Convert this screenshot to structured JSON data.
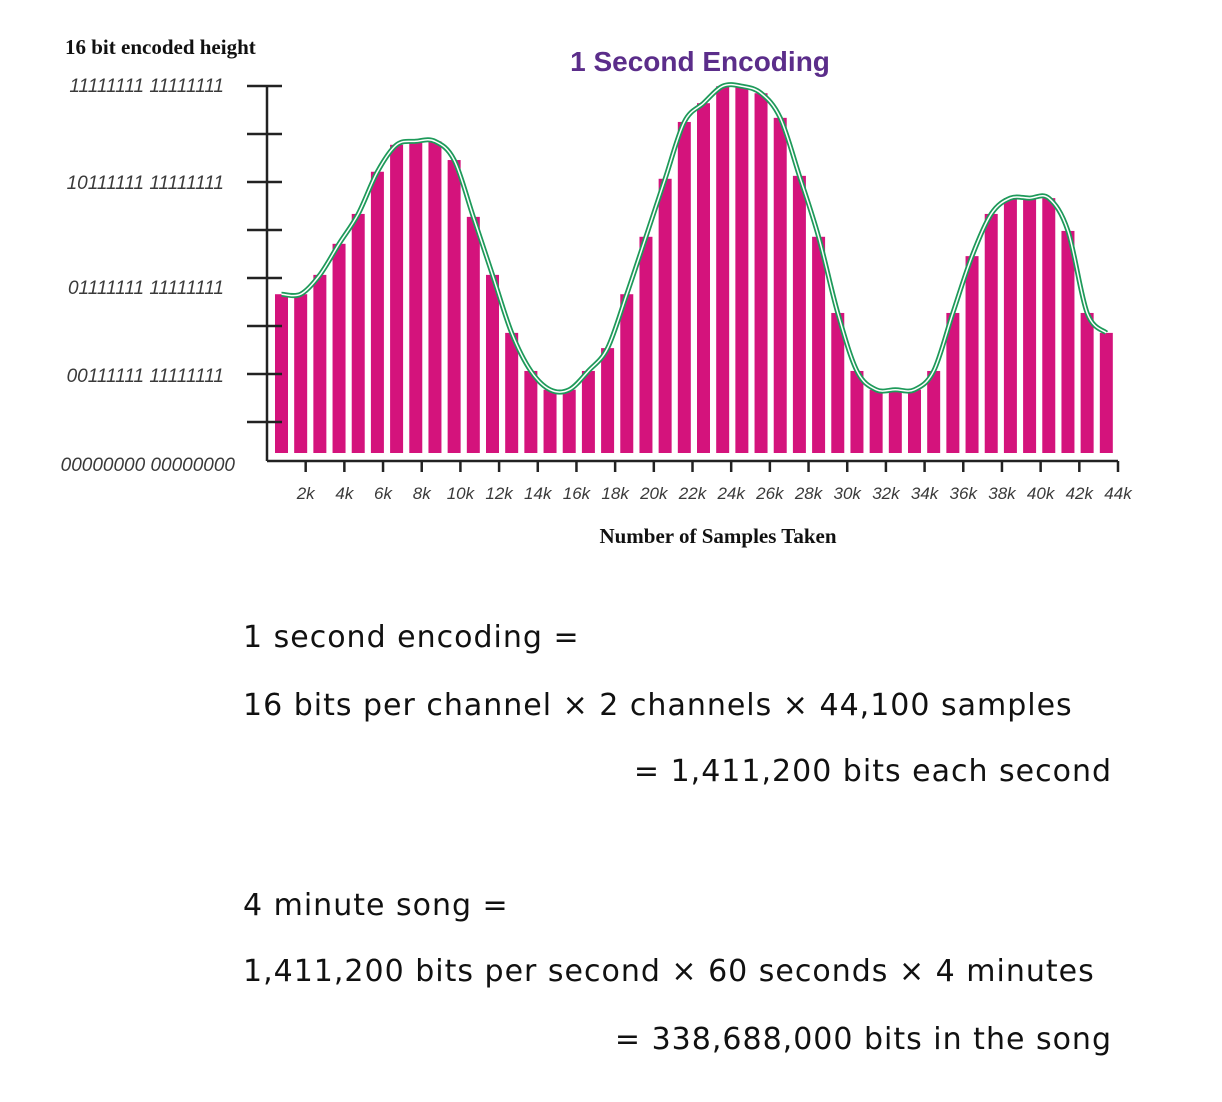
{
  "chart_data": {
    "type": "bar",
    "title": "1 Second Encoding",
    "xlabel": "Number of  Samples Taken",
    "ylabel": "16 bit encoded height",
    "ylim": [
      0,
      65535
    ],
    "y_ticks": [
      {
        "value": 65535,
        "label": "11111111 11111111"
      },
      {
        "value": 49151,
        "label": "10111111 11111111"
      },
      {
        "value": 32767,
        "label": "01111111 11111111"
      },
      {
        "value": 16383,
        "label": "00111111 11111111"
      },
      {
        "value": 0,
        "label": "00000000 00000000"
      }
    ],
    "x_ticks": [
      "2k",
      "4k",
      "6k",
      "8k",
      "10k",
      "12k",
      "14k",
      "16k",
      "18k",
      "20k",
      "22k",
      "24k",
      "26k",
      "28k",
      "30k",
      "32k",
      "34k",
      "36k",
      "38k",
      "40k",
      "42k",
      "44k"
    ],
    "xlim": [
      0,
      44000
    ],
    "bar_color": "#d4137c",
    "curve_color": "#1e9a5a",
    "values": [
      30000,
      30000,
      33300,
      38600,
      43700,
      50900,
      55500,
      56100,
      56100,
      52900,
      43200,
      33300,
      23400,
      16900,
      13700,
      13700,
      16900,
      20800,
      30000,
      39800,
      49700,
      59400,
      62600,
      65500,
      65500,
      64300,
      60100,
      50200,
      39800,
      26800,
      16900,
      13700,
      13700,
      13700,
      16900,
      26800,
      36500,
      43700,
      46400,
      46400,
      46400,
      40800,
      26800,
      23400
    ],
    "fitted_curve": "smooth sine-like curve through bar tops"
  },
  "notes": {
    "line1": "1 second encoding =",
    "line2": "16 bits per channel × 2 channels × 44,100 samples",
    "line3": "= 1,411,200 bits each second",
    "line4": "4 minute song =",
    "line5": "1,411,200 bits per second × 60 seconds × 4 minutes",
    "line6": "= 338,688,000 bits in the song"
  }
}
